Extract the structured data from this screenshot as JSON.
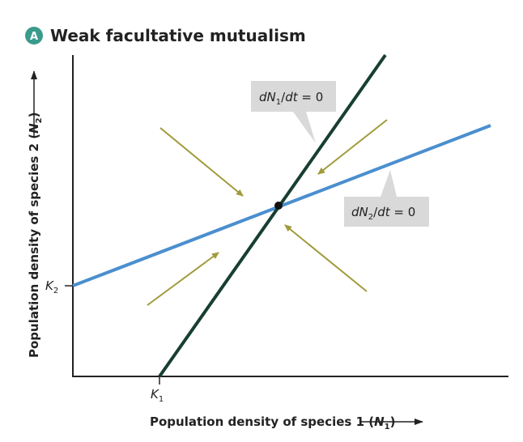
{
  "header": {
    "badge": "A",
    "title": "Weak facultative mutualism"
  },
  "axes": {
    "x_label": [
      "Population density of species 1 (",
      "N",
      "1",
      ")"
    ],
    "y_label": [
      "Population density of species 2 (",
      "N",
      "2",
      ")"
    ]
  },
  "points": {
    "k1": [
      "K",
      "1"
    ],
    "k2": [
      "K",
      "2"
    ]
  },
  "isoclines": [
    {
      "label": [
        "dN",
        "1",
        "/",
        "dt",
        " = 0"
      ]
    },
    {
      "label": [
        "dN",
        "2",
        "/",
        "dt",
        " = 0"
      ]
    }
  ]
}
